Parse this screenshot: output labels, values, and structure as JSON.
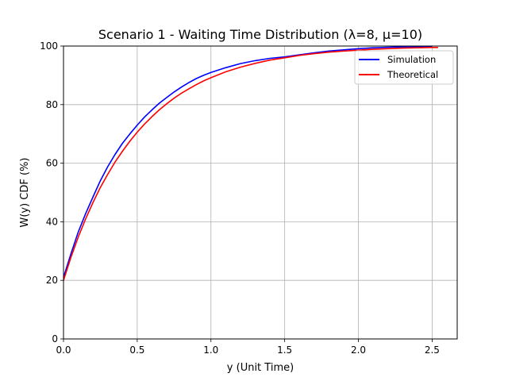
{
  "chart_data": {
    "type": "line",
    "title": "Scenario 1 - Waiting Time Distribution (λ=8, μ=10)",
    "xlabel": "y (Unit Time)",
    "ylabel": "W(y) CDF (%)",
    "xlim": [
      0,
      2.67
    ],
    "ylim": [
      0,
      100
    ],
    "xticks": [
      0.0,
      0.5,
      1.0,
      1.5,
      2.0,
      2.5
    ],
    "xtick_labels": [
      "0.0",
      "0.5",
      "1.0",
      "1.5",
      "2.0",
      "2.5"
    ],
    "yticks": [
      0,
      20,
      40,
      60,
      80,
      100
    ],
    "ytick_labels": [
      "0",
      "20",
      "40",
      "60",
      "80",
      "100"
    ],
    "grid": true,
    "legend_position": "top-right",
    "series": [
      {
        "name": "Simulation",
        "color": "#0000ff",
        "x": [
          0.0,
          0.05,
          0.1,
          0.15,
          0.2,
          0.25,
          0.3,
          0.35,
          0.4,
          0.45,
          0.5,
          0.55,
          0.6,
          0.65,
          0.7,
          0.75,
          0.8,
          0.85,
          0.9,
          0.95,
          1.0,
          1.1,
          1.2,
          1.3,
          1.4,
          1.5,
          1.6,
          1.7,
          1.8,
          1.9,
          2.0,
          2.1,
          2.2,
          2.3,
          2.4,
          2.5
        ],
        "y": [
          21.0,
          29.0,
          36.5,
          42.8,
          48.5,
          54.0,
          58.8,
          63.0,
          66.8,
          70.0,
          73.0,
          75.8,
          78.2,
          80.5,
          82.4,
          84.3,
          86.0,
          87.5,
          88.9,
          90.0,
          91.0,
          92.6,
          94.0,
          95.0,
          95.8,
          96.3,
          97.0,
          97.7,
          98.3,
          98.7,
          99.1,
          99.4,
          99.6,
          99.7,
          99.8,
          99.9
        ]
      },
      {
        "name": "Theoretical",
        "color": "#ff0000",
        "x": [
          0.0,
          0.05,
          0.1,
          0.15,
          0.2,
          0.25,
          0.3,
          0.35,
          0.4,
          0.45,
          0.5,
          0.55,
          0.6,
          0.65,
          0.7,
          0.75,
          0.8,
          0.85,
          0.9,
          0.95,
          1.0,
          1.1,
          1.2,
          1.3,
          1.4,
          1.5,
          1.6,
          1.7,
          1.8,
          1.9,
          2.0,
          2.1,
          2.2,
          2.3,
          2.4,
          2.5,
          2.54
        ],
        "y": [
          20.0,
          27.8,
          34.8,
          41.0,
          46.6,
          51.7,
          56.2,
          60.4,
          64.1,
          67.5,
          70.6,
          73.4,
          75.9,
          78.2,
          80.3,
          82.2,
          83.9,
          85.4,
          86.8,
          88.1,
          89.2,
          91.2,
          92.8,
          94.1,
          95.2,
          96.0,
          96.8,
          97.4,
          97.9,
          98.3,
          98.6,
          98.9,
          99.1,
          99.3,
          99.4,
          99.5,
          99.5
        ]
      }
    ]
  }
}
